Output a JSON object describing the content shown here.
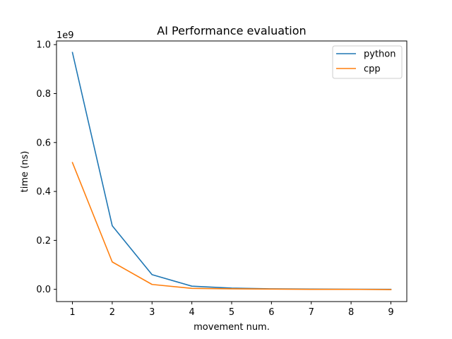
{
  "chart_data": {
    "type": "line",
    "title": "AI Performance evaluation",
    "xlabel": "movement num.",
    "ylabel": "time (ns)",
    "y_offset_label": "1e9",
    "x": [
      1,
      2,
      3,
      4,
      5,
      6,
      7,
      8,
      9
    ],
    "xlim": [
      0.6,
      9.4
    ],
    "ylim": [
      -0.05,
      1.015
    ],
    "x_ticks": [
      1,
      2,
      3,
      4,
      5,
      6,
      7,
      8,
      9
    ],
    "y_ticks": [
      0.0,
      0.2,
      0.4,
      0.6,
      0.8,
      1.0
    ],
    "y_tick_labels": [
      "0.0",
      "0.2",
      "0.4",
      "0.6",
      "0.8",
      "1.0"
    ],
    "grid": false,
    "legend_position": "top-right",
    "series": [
      {
        "name": "python",
        "color": "#1f77b4",
        "values": [
          0.968,
          0.26,
          0.06,
          0.013,
          0.005,
          0.002,
          0.001,
          0.0005,
          0.0
        ]
      },
      {
        "name": "cpp",
        "color": "#ff7f0e",
        "values": [
          0.518,
          0.112,
          0.02,
          0.004,
          0.002,
          0.001,
          0.0,
          0.0,
          -0.001
        ]
      }
    ]
  }
}
